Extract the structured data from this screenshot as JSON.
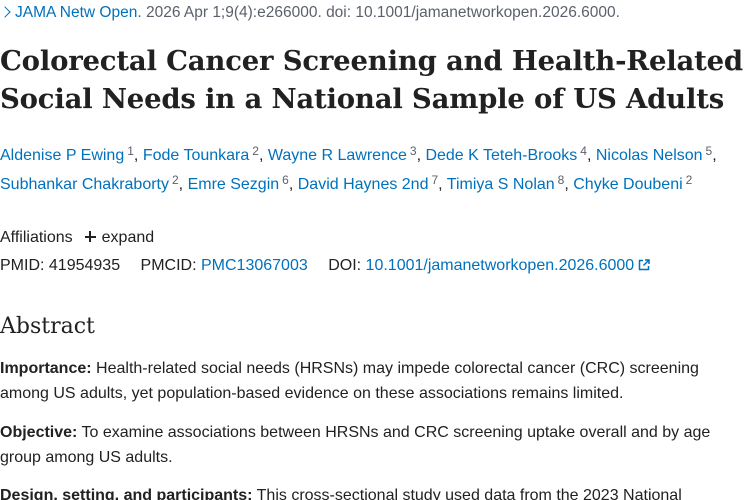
{
  "citation": {
    "journal": "JAMA Netw Open.",
    "details": "2026 Apr 1;9(4):e266000. doi: 10.1001/jamanetworkopen.2026.6000."
  },
  "title": "Colorectal Cancer Screening and Health-Related Social Needs in a National Sample of US Adults",
  "authors": [
    {
      "name": "Aldenise P Ewing",
      "aff": "1"
    },
    {
      "name": "Fode Tounkara",
      "aff": "2"
    },
    {
      "name": "Wayne R Lawrence",
      "aff": "3"
    },
    {
      "name": "Dede K Teteh-Brooks",
      "aff": "4"
    },
    {
      "name": "Nicolas Nelson",
      "aff": "5"
    },
    {
      "name": "Subhankar Chakraborty",
      "aff": "2"
    },
    {
      "name": "Emre Sezgin",
      "aff": "6"
    },
    {
      "name": "David Haynes 2nd",
      "aff": "7"
    },
    {
      "name": "Timiya S Nolan",
      "aff": "8"
    },
    {
      "name": "Chyke Doubeni",
      "aff": "2"
    }
  ],
  "affiliations": {
    "label": "Affiliations",
    "expand_label": "expand"
  },
  "ids": {
    "pmid_label": "PMID:",
    "pmid": "41954935",
    "pmcid_label": "PMCID:",
    "pmcid": "PMC13067003",
    "doi_label": "DOI:",
    "doi": "10.1001/jamanetworkopen.2026.6000"
  },
  "abstract": {
    "heading": "Abstract",
    "sections": [
      {
        "label": "Importance:",
        "text": "Health-related social needs (HRSNs) may impede colorectal cancer (CRC) screening among US adults, yet population-based evidence on these associations remains limited."
      },
      {
        "label": "Objective:",
        "text": "To examine associations between HRSNs and CRC screening uptake overall and by age group among US adults."
      },
      {
        "label": "Design, setting, and participants:",
        "text": "This cross-sectional study used data from the 2023 National"
      }
    ]
  },
  "colors": {
    "link": "#0071bc",
    "text": "#212121",
    "muted": "#5b616b"
  }
}
